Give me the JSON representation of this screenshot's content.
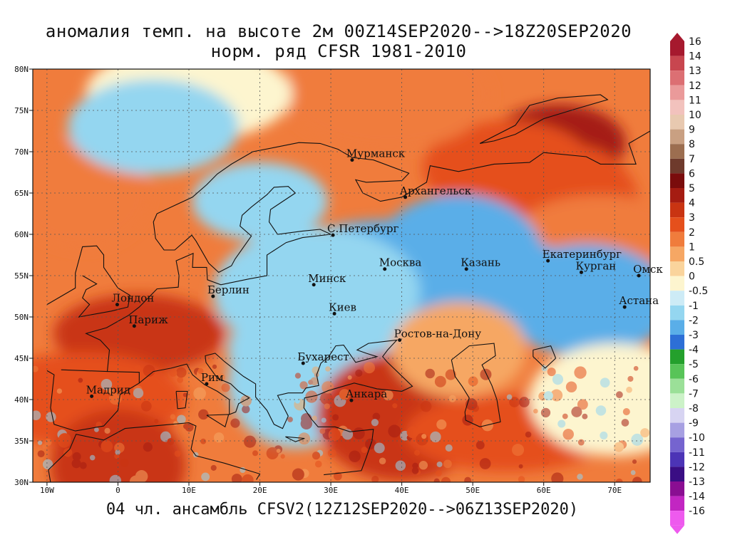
{
  "chart_data": {
    "type": "heatmap",
    "title": "аномалия темп. на высоте 2м 00Z14SEP2020-->18Z20SEP2020",
    "subtitle": "норм. ряд CFSR 1981-2010",
    "footer": "04 чл. ансамбль CFSV2(12Z12SEP2020-->06Z13SEP2020)",
    "xlim": [
      -12,
      75
    ],
    "ylim": [
      30,
      80
    ],
    "x_ticks": [
      {
        "v": -10,
        "label": "10W"
      },
      {
        "v": 0,
        "label": "0"
      },
      {
        "v": 10,
        "label": "10E"
      },
      {
        "v": 20,
        "label": "20E"
      },
      {
        "v": 30,
        "label": "30E"
      },
      {
        "v": 40,
        "label": "40E"
      },
      {
        "v": 50,
        "label": "50E"
      },
      {
        "v": 60,
        "label": "60E"
      },
      {
        "v": 70,
        "label": "70E"
      }
    ],
    "y_ticks": [
      {
        "v": 30,
        "label": "30N"
      },
      {
        "v": 35,
        "label": "35N"
      },
      {
        "v": 40,
        "label": "40N"
      },
      {
        "v": 45,
        "label": "45N"
      },
      {
        "v": 50,
        "label": "50N"
      },
      {
        "v": 55,
        "label": "55N"
      },
      {
        "v": 60,
        "label": "60N"
      },
      {
        "v": 65,
        "label": "65N"
      },
      {
        "v": 70,
        "label": "70N"
      },
      {
        "v": 75,
        "label": "75N"
      },
      {
        "v": 80,
        "label": "80N"
      }
    ],
    "grid": true,
    "legend": {
      "placement": "right",
      "levels": [
        {
          "label": "16",
          "color": "#a6192e"
        },
        {
          "label": "14",
          "color": "#c8464f"
        },
        {
          "label": "13",
          "color": "#dc6f73"
        },
        {
          "label": "12",
          "color": "#ea9a9a"
        },
        {
          "label": "11",
          "color": "#f2c2bd"
        },
        {
          "label": "10",
          "color": "#e8c9b0"
        },
        {
          "label": "9",
          "color": "#c9a082"
        },
        {
          "label": "8",
          "color": "#9c6e50"
        },
        {
          "label": "7",
          "color": "#6e3a2c"
        },
        {
          "label": "6",
          "color": "#7a0c0c"
        },
        {
          "label": "5",
          "color": "#a51c12"
        },
        {
          "label": "4",
          "color": "#c93412"
        },
        {
          "label": "3",
          "color": "#e5501c"
        },
        {
          "label": "2",
          "color": "#f07c3c"
        },
        {
          "label": "1",
          "color": "#f6a764"
        },
        {
          "label": "0.5",
          "color": "#fad49c"
        },
        {
          "label": "0",
          "color": "#fdf5cf"
        },
        {
          "label": "-0.5",
          "color": "#cdebf6"
        },
        {
          "label": "-1",
          "color": "#94d6f0"
        },
        {
          "label": "-2",
          "color": "#5aaee8"
        },
        {
          "label": "-3",
          "color": "#2d6fd6"
        },
        {
          "label": "-4",
          "color": "#24a02c"
        },
        {
          "label": "-5",
          "color": "#58c458"
        },
        {
          "label": "-6",
          "color": "#9be098"
        },
        {
          "label": "-7",
          "color": "#ccf2c8"
        },
        {
          "label": "-8",
          "color": "#d7d4f2"
        },
        {
          "label": "-9",
          "color": "#a7a0e2"
        },
        {
          "label": "-10",
          "color": "#7564cf"
        },
        {
          "label": "-11",
          "color": "#4c34b6"
        },
        {
          "label": "-12",
          "color": "#3a0e84"
        },
        {
          "label": "-13",
          "color": "#8a0e92"
        },
        {
          "label": "-14",
          "color": "#c226c2"
        },
        {
          "label": "-16",
          "color": "#ee5aee"
        }
      ]
    },
    "cities": [
      {
        "name": "Мурманск",
        "lon": 33,
        "lat": 69
      },
      {
        "name": "Архангельск",
        "lon": 40.5,
        "lat": 64.5
      },
      {
        "name": "С.Петербург",
        "lon": 30.3,
        "lat": 59.9
      },
      {
        "name": "Москва",
        "lon": 37.6,
        "lat": 55.8
      },
      {
        "name": "Казань",
        "lon": 49.1,
        "lat": 55.8
      },
      {
        "name": "Екатеринбург",
        "lon": 60.6,
        "lat": 56.8
      },
      {
        "name": "Курган",
        "lon": 65.3,
        "lat": 55.4
      },
      {
        "name": "Омск",
        "lon": 73.4,
        "lat": 55
      },
      {
        "name": "Астана",
        "lon": 71.4,
        "lat": 51.2
      },
      {
        "name": "Минск",
        "lon": 27.6,
        "lat": 53.9
      },
      {
        "name": "Киев",
        "lon": 30.5,
        "lat": 50.4
      },
      {
        "name": "Берлин",
        "lon": 13.4,
        "lat": 52.5
      },
      {
        "name": "Лондон",
        "lon": -0.1,
        "lat": 51.5
      },
      {
        "name": "Париж",
        "lon": 2.3,
        "lat": 48.9
      },
      {
        "name": "Ростов-на-Дону",
        "lon": 39.7,
        "lat": 47.2
      },
      {
        "name": "Бухарест",
        "lon": 26.1,
        "lat": 44.4
      },
      {
        "name": "Рим",
        "lon": 12.5,
        "lat": 41.9
      },
      {
        "name": "Мадрид",
        "lon": -3.7,
        "lat": 40.4
      },
      {
        "name": "Анкара",
        "lon": 32.9,
        "lat": 39.9
      }
    ],
    "anomaly_regions": [
      {
        "lon": 62,
        "lat": 71,
        "value": 5
      },
      {
        "lon": 55,
        "lat": 68,
        "value": 3
      },
      {
        "lon": 38,
        "lat": 77,
        "value": 2
      },
      {
        "lon": 64,
        "lat": 63,
        "value": 3
      },
      {
        "lon": 68,
        "lat": 60,
        "value": 2
      },
      {
        "lon": 10,
        "lat": 77,
        "value": 0
      },
      {
        "lon": -5,
        "lat": 65,
        "value": 2
      },
      {
        "lon": 48,
        "lat": 57,
        "value": -2
      },
      {
        "lon": 38,
        "lat": 57,
        "value": -2
      },
      {
        "lon": 58,
        "lat": 53,
        "value": -2
      },
      {
        "lon": 66,
        "lat": 52,
        "value": -2
      },
      {
        "lon": 28,
        "lat": 53,
        "value": -1
      },
      {
        "lon": 20,
        "lat": 64,
        "value": -1
      },
      {
        "lon": 5,
        "lat": 73,
        "value": -1
      },
      {
        "lon": 30,
        "lat": 46,
        "value": -1
      },
      {
        "lon": 25,
        "lat": 42,
        "value": -1
      },
      {
        "lon": 3,
        "lat": 48,
        "value": 4
      },
      {
        "lon": -5,
        "lat": 40,
        "value": 3
      },
      {
        "lon": 0,
        "lat": 32,
        "value": 4
      },
      {
        "lon": 40,
        "lat": 38,
        "value": 4
      },
      {
        "lon": 55,
        "lat": 36,
        "value": 3
      },
      {
        "lon": 48,
        "lat": 46,
        "value": 1
      },
      {
        "lon": 70,
        "lat": 40,
        "value": 0
      }
    ]
  }
}
